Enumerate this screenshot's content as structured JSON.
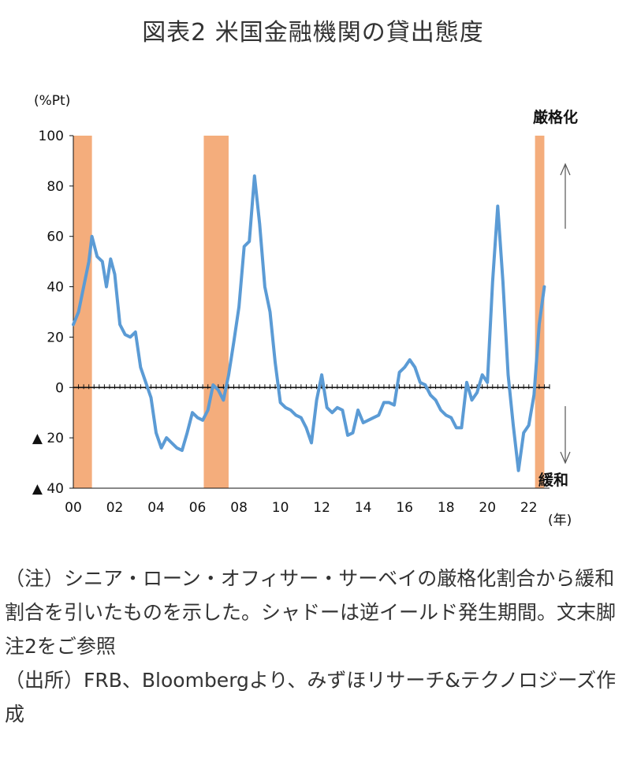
{
  "title": "図表2 米国金融機関の貸出態度",
  "chart_data": {
    "type": "line",
    "ylabel": "(%Pt)",
    "xlabel": "(年)",
    "ylim": [
      -40,
      100
    ],
    "yticks": [
      {
        "value": 100,
        "label": "100"
      },
      {
        "value": 80,
        "label": "80"
      },
      {
        "value": 60,
        "label": "60"
      },
      {
        "value": 40,
        "label": "40"
      },
      {
        "value": 20,
        "label": "20"
      },
      {
        "value": 0,
        "label": "0"
      },
      {
        "value": -20,
        "label": "▲ 20"
      },
      {
        "value": -40,
        "label": "▲ 40"
      }
    ],
    "xlim": [
      2000,
      2023
    ],
    "xticks": [
      {
        "value": 2000,
        "label": "00"
      },
      {
        "value": 2002,
        "label": "02"
      },
      {
        "value": 2004,
        "label": "04"
      },
      {
        "value": 2006,
        "label": "06"
      },
      {
        "value": 2008,
        "label": "08"
      },
      {
        "value": 2010,
        "label": "10"
      },
      {
        "value": 2012,
        "label": "12"
      },
      {
        "value": 2014,
        "label": "14"
      },
      {
        "value": 2016,
        "label": "16"
      },
      {
        "value": 2018,
        "label": "18"
      },
      {
        "value": 2020,
        "label": "20"
      },
      {
        "value": 2022,
        "label": "22"
      }
    ],
    "annotations": {
      "top": "厳格化",
      "bottom": "緩和"
    },
    "shaded_periods": [
      [
        2000.0,
        2000.9
      ],
      [
        2006.3,
        2007.5
      ],
      [
        2022.3,
        2022.75
      ]
    ],
    "series": [
      {
        "color": "#5b9bd5",
        "points": [
          [
            2000.0,
            25
          ],
          [
            2000.25,
            30
          ],
          [
            2000.5,
            40
          ],
          [
            2000.75,
            50
          ],
          [
            2000.9,
            60
          ],
          [
            2001.15,
            52
          ],
          [
            2001.4,
            50
          ],
          [
            2001.6,
            40
          ],
          [
            2001.8,
            51
          ],
          [
            2002.0,
            45
          ],
          [
            2002.25,
            25
          ],
          [
            2002.5,
            21
          ],
          [
            2002.75,
            20
          ],
          [
            2003.0,
            22
          ],
          [
            2003.25,
            8
          ],
          [
            2003.5,
            2
          ],
          [
            2003.75,
            -4
          ],
          [
            2004.0,
            -18
          ],
          [
            2004.25,
            -24
          ],
          [
            2004.5,
            -20
          ],
          [
            2004.75,
            -22
          ],
          [
            2005.0,
            -24
          ],
          [
            2005.25,
            -25
          ],
          [
            2005.5,
            -18
          ],
          [
            2005.75,
            -10
          ],
          [
            2006.0,
            -12
          ],
          [
            2006.25,
            -13
          ],
          [
            2006.5,
            -9
          ],
          [
            2006.75,
            1
          ],
          [
            2007.0,
            -1
          ],
          [
            2007.25,
            -5
          ],
          [
            2007.5,
            5
          ],
          [
            2007.75,
            18
          ],
          [
            2008.0,
            32
          ],
          [
            2008.25,
            56
          ],
          [
            2008.5,
            58
          ],
          [
            2008.75,
            84
          ],
          [
            2009.0,
            65
          ],
          [
            2009.25,
            40
          ],
          [
            2009.5,
            30
          ],
          [
            2009.75,
            10
          ],
          [
            2010.0,
            -6
          ],
          [
            2010.25,
            -8
          ],
          [
            2010.5,
            -9
          ],
          [
            2010.75,
            -11
          ],
          [
            2011.0,
            -12
          ],
          [
            2011.25,
            -16
          ],
          [
            2011.5,
            -22
          ],
          [
            2011.75,
            -5
          ],
          [
            2012.0,
            5
          ],
          [
            2012.25,
            -8
          ],
          [
            2012.5,
            -10
          ],
          [
            2012.75,
            -8
          ],
          [
            2013.0,
            -9
          ],
          [
            2013.25,
            -19
          ],
          [
            2013.5,
            -18
          ],
          [
            2013.75,
            -9
          ],
          [
            2014.0,
            -14
          ],
          [
            2014.25,
            -13
          ],
          [
            2014.5,
            -12
          ],
          [
            2014.75,
            -11
          ],
          [
            2015.0,
            -6
          ],
          [
            2015.25,
            -6
          ],
          [
            2015.5,
            -7
          ],
          [
            2015.75,
            6
          ],
          [
            2016.0,
            8
          ],
          [
            2016.25,
            11
          ],
          [
            2016.5,
            8
          ],
          [
            2016.75,
            2
          ],
          [
            2017.0,
            1
          ],
          [
            2017.25,
            -3
          ],
          [
            2017.5,
            -5
          ],
          [
            2017.75,
            -9
          ],
          [
            2018.0,
            -11
          ],
          [
            2018.25,
            -12
          ],
          [
            2018.5,
            -16
          ],
          [
            2018.75,
            -16
          ],
          [
            2019.0,
            2
          ],
          [
            2019.25,
            -5
          ],
          [
            2019.5,
            -2
          ],
          [
            2019.75,
            5
          ],
          [
            2020.0,
            2
          ],
          [
            2020.25,
            42
          ],
          [
            2020.5,
            72
          ],
          [
            2020.75,
            42
          ],
          [
            2021.0,
            5
          ],
          [
            2021.25,
            -15
          ],
          [
            2021.5,
            -33
          ],
          [
            2021.75,
            -18
          ],
          [
            2022.0,
            -15
          ],
          [
            2022.25,
            -3
          ],
          [
            2022.5,
            25
          ],
          [
            2022.75,
            40
          ]
        ]
      }
    ]
  },
  "notes": [
    "（注）シニア・ローン・オフィサー・サーベイの厳格化割合から緩和割合を引いたものを示した。シャドーは逆イールド発生期間。文末脚注2をご参照",
    "（出所）FRB、Bloombergより、みずほリサーチ&テクノロジーズ作成"
  ]
}
